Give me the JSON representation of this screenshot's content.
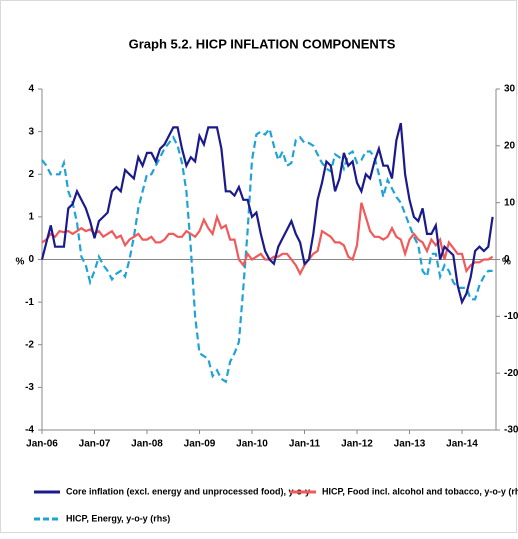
{
  "chart_data": {
    "type": "line",
    "title": "Graph 5.2. HICP INFLATION COMPONENTS",
    "y_label": "%",
    "y2_label": "%",
    "categories": [
      "Jan-06",
      null,
      null,
      null,
      null,
      null,
      null,
      null,
      null,
      null,
      null,
      null,
      "Jan-07",
      null,
      null,
      null,
      null,
      null,
      null,
      null,
      null,
      null,
      null,
      null,
      "Jan-08",
      null,
      null,
      null,
      null,
      null,
      null,
      null,
      null,
      null,
      null,
      null,
      "Jan-09",
      null,
      null,
      null,
      null,
      null,
      null,
      null,
      null,
      null,
      null,
      null,
      "Jan-10",
      null,
      null,
      null,
      null,
      null,
      null,
      null,
      null,
      null,
      null,
      null,
      "Jan-11",
      null,
      null,
      null,
      null,
      null,
      null,
      null,
      null,
      null,
      null,
      null,
      "Jan-12",
      null,
      null,
      null,
      null,
      null,
      null,
      null,
      null,
      null,
      null,
      null,
      "Jan-13",
      null,
      null,
      null,
      null,
      null,
      null,
      null,
      null,
      null,
      null,
      null,
      "Jan-14",
      null,
      null,
      null,
      null,
      null,
      null,
      null
    ],
    "ylim": [
      -4,
      4
    ],
    "yticks": [
      -4,
      -3,
      -2,
      -1,
      0,
      1,
      2,
      3,
      4
    ],
    "y2lim": [
      -30,
      30
    ],
    "y2ticks": [
      -30,
      -20,
      -10,
      0,
      10,
      20,
      30
    ],
    "legend": "bottom",
    "series": [
      {
        "name": "Core inflation (excl. energy and unprocessed food), y-o-y",
        "color": "#1a1a8c",
        "dash": false,
        "values": [
          0.0,
          0.4,
          0.8,
          0.3,
          0.3,
          0.3,
          1.2,
          1.3,
          1.6,
          1.4,
          1.2,
          0.9,
          0.5,
          0.9,
          1.0,
          1.1,
          1.6,
          1.7,
          1.6,
          2.1,
          2.0,
          1.9,
          2.4,
          2.2,
          2.5,
          2.5,
          2.3,
          2.6,
          2.7,
          2.9,
          3.1,
          3.1,
          2.6,
          2.2,
          2.4,
          2.3,
          2.9,
          2.7,
          3.1,
          3.1,
          3.1,
          2.6,
          1.6,
          1.6,
          1.5,
          1.7,
          1.4,
          1.4,
          1.0,
          1.1,
          0.6,
          0.2,
          0.0,
          -0.1,
          0.3,
          0.5,
          0.7,
          0.9,
          0.6,
          0.4,
          -0.1,
          0.0,
          0.6,
          1.4,
          1.8,
          2.3,
          2.2,
          1.6,
          1.9,
          2.5,
          2.2,
          2.3,
          1.8,
          1.6,
          2.0,
          1.9,
          2.3,
          2.6,
          2.2,
          2.2,
          1.9,
          2.8,
          3.2,
          2.0,
          1.4,
          1.0,
          0.9,
          1.2,
          0.6,
          0.6,
          0.8,
          0.0,
          0.3,
          0.2,
          0.1,
          -0.6,
          -1.0,
          -0.8,
          -0.4,
          0.2,
          0.3,
          0.2,
          0.3,
          1.0
        ]
      },
      {
        "name": "HICP, Food incl. alcohol and tobacco, y-o-y (rhs)",
        "color": "#f05a5a",
        "dash": false,
        "axis": "y2",
        "values": [
          3.0,
          3.5,
          4.5,
          4.0,
          5.0,
          4.8,
          5.0,
          4.5,
          5.0,
          5.5,
          5.0,
          5.3,
          4.5,
          5.0,
          4.0,
          4.5,
          5.0,
          3.8,
          4.2,
          2.5,
          3.5,
          4.0,
          4.5,
          3.5,
          3.5,
          4.0,
          3.0,
          3.0,
          3.5,
          4.5,
          4.5,
          4.0,
          4.0,
          5.0,
          4.5,
          4.0,
          5.0,
          7.0,
          5.5,
          4.5,
          7.5,
          5.5,
          6.0,
          3.5,
          3.5,
          0.0,
          -1.0,
          1.0,
          0.0,
          0.5,
          1.0,
          0.0,
          0.0,
          0.5,
          0.5,
          1.0,
          1.0,
          0.0,
          -1.0,
          -2.5,
          -1.0,
          0.0,
          1.0,
          1.5,
          5.0,
          4.5,
          4.0,
          3.0,
          3.0,
          2.5,
          0.5,
          0.0,
          2.5,
          10.0,
          7.5,
          5.0,
          4.0,
          4.0,
          3.5,
          4.0,
          5.5,
          4.0,
          3.5,
          1.0,
          3.5,
          4.5,
          3.5,
          3.0,
          1.5,
          3.5,
          2.5,
          3.5,
          0.0,
          3.0,
          2.0,
          1.0,
          1.0,
          -2.0,
          -1.0,
          -0.5,
          -0.5,
          0.0,
          0.0,
          0.5
        ]
      },
      {
        "name": "HICP, Energy, y-o-y (rhs)",
        "color": "#1fa3d6",
        "dash": true,
        "axis": "y2",
        "values": [
          17.5,
          16.5,
          15.0,
          15.0,
          15.0,
          17.0,
          12.0,
          10.0,
          6.5,
          0.5,
          -1.0,
          -4.0,
          -2.0,
          0.5,
          -1.0,
          -2.0,
          -3.5,
          -2.5,
          -2.0,
          -3.0,
          0.0,
          4.0,
          9.0,
          12.0,
          15.0,
          15.0,
          16.5,
          18.0,
          19.5,
          20.5,
          21.5,
          20.0,
          17.0,
          12.0,
          2.0,
          -10.0,
          -16.5,
          -17.0,
          -17.5,
          -20.5,
          -19.5,
          -21.0,
          -21.5,
          -18.0,
          -16.5,
          -14.5,
          -5.0,
          5.0,
          17.5,
          22.0,
          22.5,
          22.0,
          23.0,
          20.0,
          17.5,
          19.0,
          16.5,
          17.0,
          21.0,
          21.5,
          20.5,
          20.5,
          20.0,
          18.5,
          17.0,
          16.0,
          15.5,
          18.5,
          18.0,
          16.0,
          18.5,
          19.0,
          17.0,
          17.5,
          19.0,
          19.0,
          18.0,
          15.0,
          11.0,
          14.0,
          12.5,
          11.0,
          10.0,
          8.0,
          6.0,
          4.0,
          2.5,
          -2.0,
          -3.0,
          1.0,
          1.0,
          -3.0,
          -1.0,
          -2.0,
          -4.0,
          -5.0,
          -5.0,
          -5.0,
          -7.0,
          -7.0,
          -4.5,
          -3.0,
          -2.0,
          -2.0
        ]
      }
    ]
  }
}
